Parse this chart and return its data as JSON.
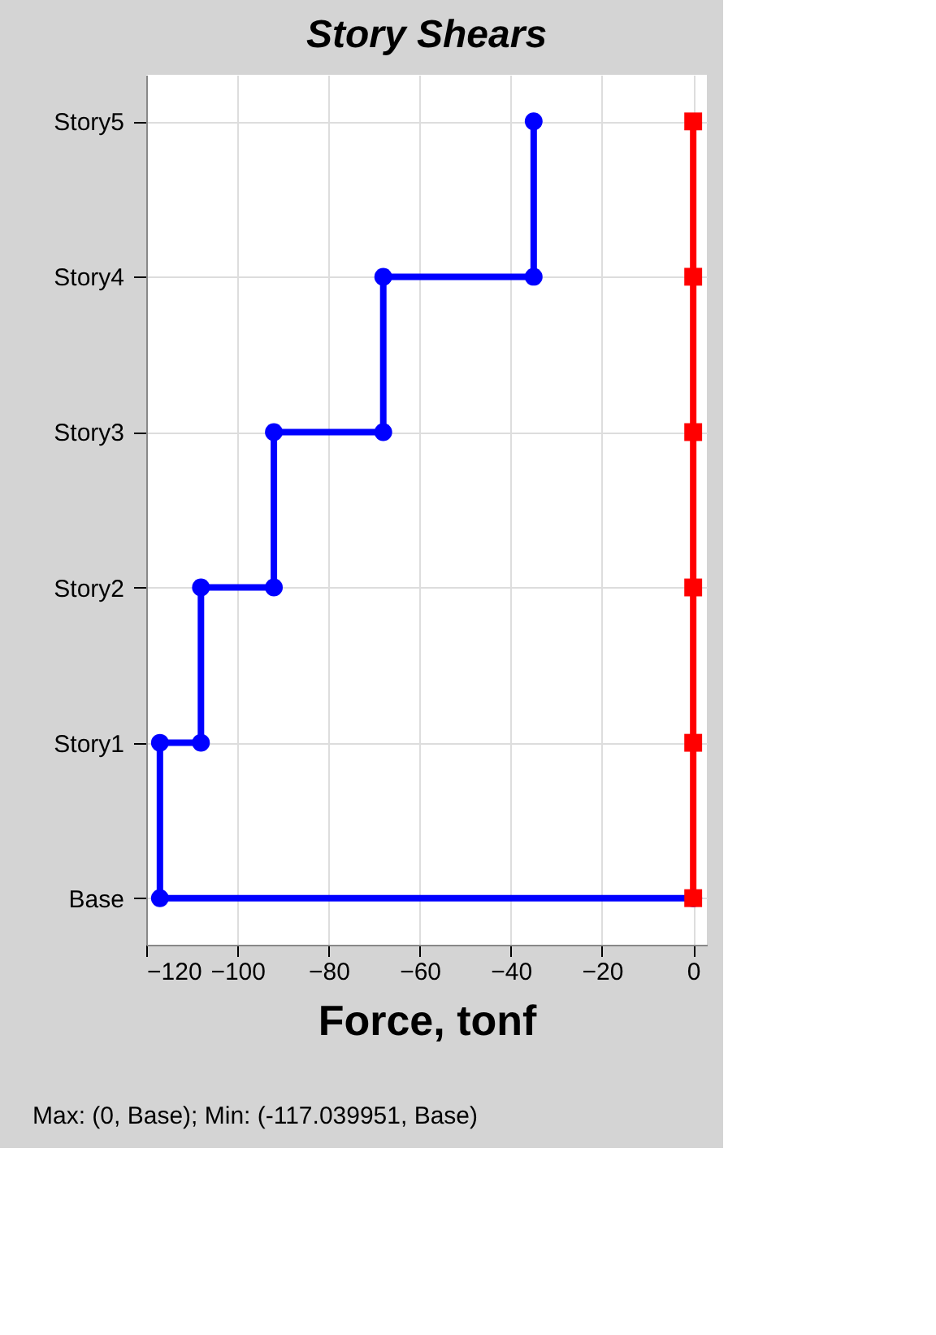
{
  "chart_data": {
    "type": "line",
    "orientation": "horizontal",
    "title": "Story Shears",
    "xlabel": "Force, tonf",
    "categories": [
      "Story5",
      "Story4",
      "Story3",
      "Story2",
      "Story1",
      "Base"
    ],
    "xlim": [
      -120,
      3
    ],
    "xticks": [
      -120,
      -100,
      -80,
      -60,
      -40,
      -20,
      0
    ],
    "grid": true,
    "legend": false,
    "line_style": "solid",
    "series": [
      {
        "color": "#0000ff",
        "marker": "circle",
        "x": [
          "Story5",
          "Story4",
          "Story4",
          "Story3",
          "Story3",
          "Story2",
          "Story2",
          "Story1",
          "Story1",
          "Base",
          "Base"
        ],
        "values": [
          -35,
          -35,
          -68,
          -68,
          -92,
          -92,
          -108,
          -108,
          -117,
          -117,
          0
        ]
      },
      {
        "color": "#ff0000",
        "marker": "square",
        "values": [
          0,
          0,
          0,
          0,
          0,
          0
        ]
      }
    ],
    "annotations": [
      "Max: (0, Base);   Min: (-117.039951, Base)"
    ]
  }
}
